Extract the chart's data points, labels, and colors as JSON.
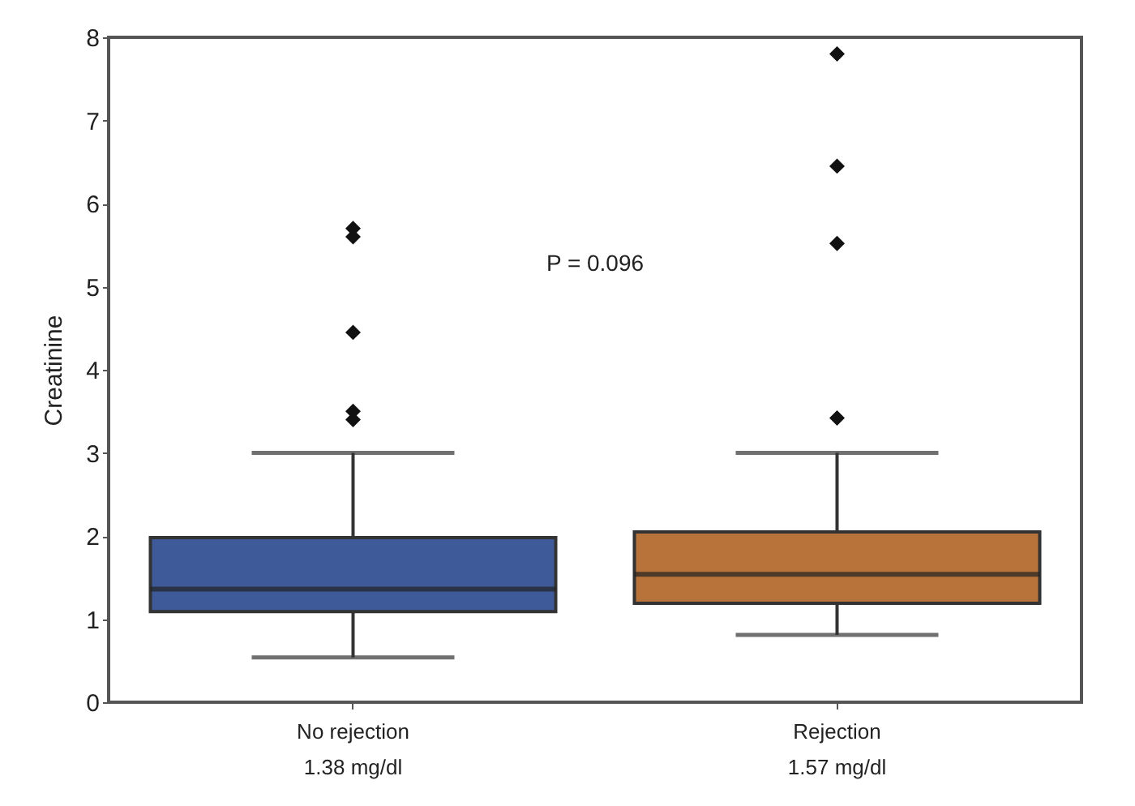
{
  "chart_data": {
    "type": "box",
    "ylabel": "Creatinine",
    "categories": [
      "No rejection\n1.38 mg/dl",
      "Rejection\n1.57 mg/dl"
    ],
    "colors": [
      "#3f5a98",
      "#b8733a"
    ],
    "boxes": [
      {
        "low": 0.54,
        "q1": 1.09,
        "median": 1.36,
        "q3": 1.98,
        "high": 3.0,
        "outliers": [
          3.4,
          3.5,
          4.45,
          5.6,
          5.7
        ]
      },
      {
        "low": 0.81,
        "q1": 1.19,
        "median": 1.54,
        "q3": 2.05,
        "high": 3.0,
        "outliers": [
          3.42,
          5.52,
          6.45,
          7.8
        ]
      }
    ],
    "ylim": [
      0,
      8
    ],
    "yticks": [
      0,
      1,
      2,
      3,
      4,
      5,
      6,
      7,
      8
    ],
    "annotations": [
      "P = 0.096"
    ],
    "marker": "diamond",
    "grid": false,
    "legend": false
  }
}
